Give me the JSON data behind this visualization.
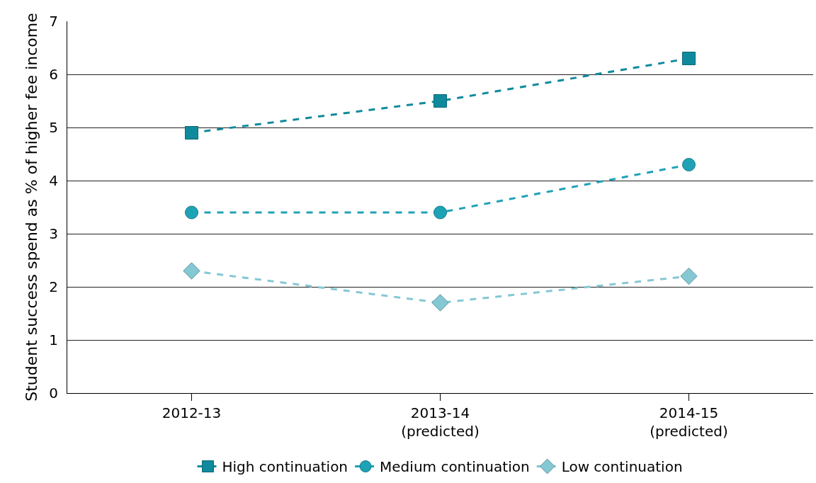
{
  "chart_data": {
    "type": "line",
    "ylabel": "Student success spend as % of higher fee income",
    "categories": [
      "2012-13",
      "2013-14\n(predicted)",
      "2014-15\n(predicted)"
    ],
    "series": [
      {
        "name": "High continuation",
        "color": "#0f8a9c",
        "marker": "square",
        "values": [
          4.9,
          5.5,
          6.3
        ]
      },
      {
        "name": "Medium continuation",
        "color": "#1ea2b6",
        "marker": "circle",
        "values": [
          3.4,
          3.4,
          4.3
        ]
      },
      {
        "name": "Low continuation",
        "color": "#84c8d4",
        "marker": "diamond",
        "values": [
          2.3,
          1.7,
          2.2
        ]
      }
    ],
    "ylim": [
      0,
      7
    ],
    "yticks": [
      0,
      1,
      2,
      3,
      4,
      5,
      6,
      7
    ],
    "grid": "y",
    "legend": "bottom",
    "line_style": "dashed"
  }
}
